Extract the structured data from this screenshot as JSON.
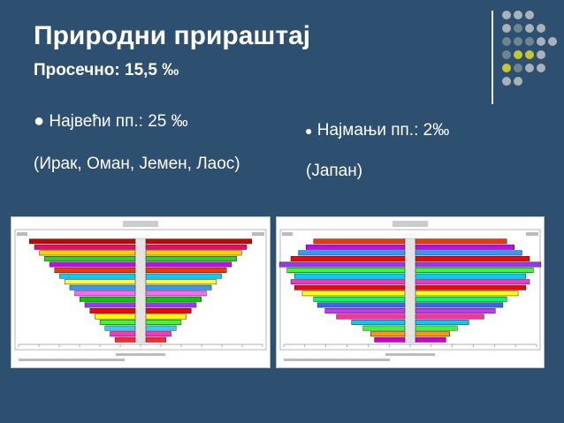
{
  "slide": {
    "title": "Природни прираштај",
    "subtitle": "Просечно: 15,5 ‰",
    "left": {
      "bullet": "Највећи пп.: 25 ‰",
      "note": "(Ирак, Оман, Јемен, Лаос)"
    },
    "right": {
      "bullet": "Најмањи пп.: 2‰",
      "note": "(Јапан)"
    }
  },
  "colors": {
    "background": "#2d4f70",
    "dot_gray": "#a9b2b9",
    "dot_yellow": "#c8c62d",
    "dot_slate": "#6f8591"
  },
  "decor": {
    "dot_pattern": [
      [
        "gray",
        "gray",
        "gray",
        null,
        null
      ],
      [
        "gray",
        "slate",
        "gray",
        "gray",
        null
      ],
      [
        "slate",
        "slate",
        "slate",
        "gray",
        "gray"
      ],
      [
        "slate",
        "yellow",
        "yellow",
        "gray",
        null
      ],
      [
        "yellow",
        "slate",
        "gray",
        "gray",
        null
      ],
      [
        "gray",
        "gray",
        null,
        null,
        null
      ]
    ]
  },
  "pyramids": [
    {
      "values": [
        4,
        5,
        6,
        7,
        8,
        9,
        10,
        11,
        12,
        13,
        14,
        15,
        16,
        17,
        18,
        19,
        20,
        21
      ],
      "bar_colors": [
        "#ff2a2a",
        "#ff33cc",
        "#33ccff",
        "#33ff33",
        "#ffff00",
        "#ff0000",
        "#9933ff",
        "#00cc00",
        "#ff66ff",
        "#3399ff",
        "#ffff33",
        "#00ccff",
        "#ff3300",
        "#cc00ff",
        "#33cc33",
        "#ffcc00",
        "#ff0066",
        "#cc0000"
      ]
    },
    {
      "values": [
        8,
        9,
        11,
        14,
        18,
        21,
        23,
        24,
        27,
        29,
        30,
        29,
        31,
        33,
        30,
        28,
        26,
        24
      ],
      "bar_colors": [
        "#cc00cc",
        "#ff9900",
        "#33ff33",
        "#00ccff",
        "#ff3399",
        "#cc33ff",
        "#3366ff",
        "#00ff66",
        "#ffff00",
        "#ff0000",
        "#ff33cc",
        "#00ccff",
        "#33ff33",
        "#9933ff",
        "#ff0000",
        "#3399ff",
        "#cc00ff",
        "#ff3300"
      ]
    }
  ]
}
